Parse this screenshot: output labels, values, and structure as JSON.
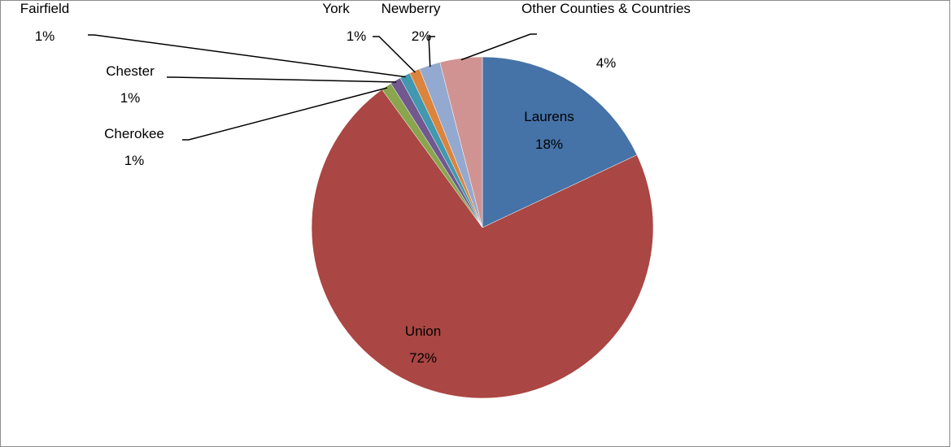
{
  "chart_data": {
    "type": "pie",
    "categories": [
      "Laurens",
      "Union",
      "Cherokee",
      "Chester",
      "Fairfield",
      "York",
      "Newberry",
      "Other Counties & Countries"
    ],
    "values": [
      18,
      72,
      1,
      1,
      1,
      1,
      2,
      4
    ],
    "value_labels": [
      "18%",
      "72%",
      "1%",
      "1%",
      "1%",
      "1%",
      "2%",
      "4%"
    ],
    "colors": [
      "#4572a7",
      "#aa4643",
      "#89a54e",
      "#71588f",
      "#4198af",
      "#db843d",
      "#93a9cf",
      "#d19392"
    ]
  }
}
